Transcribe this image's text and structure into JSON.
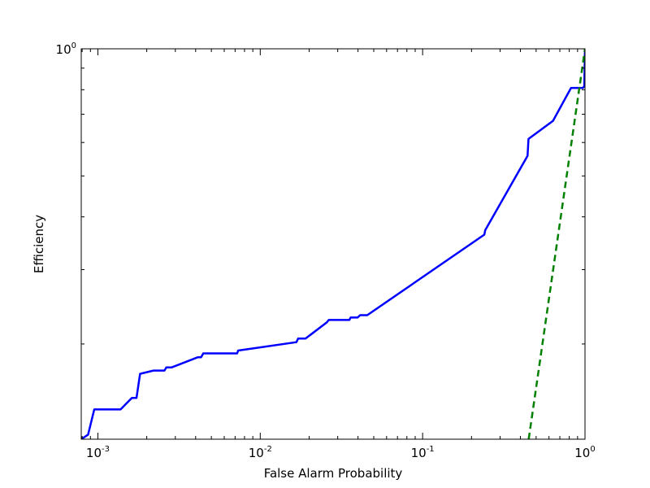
{
  "chart_data": {
    "type": "line",
    "title": "",
    "xlabel": "False Alarm Probability",
    "ylabel": "Efficiency",
    "xscale": "log",
    "yscale": "log",
    "xlim": [
      0.00079,
      1.0
    ],
    "ylim": [
      0.119,
      1.0
    ],
    "grid": false,
    "legend": "none",
    "x_tick_labels": [
      {
        "value": 0.001,
        "base": "10",
        "exp": "-3"
      },
      {
        "value": 0.01,
        "base": "10",
        "exp": "-2"
      },
      {
        "value": 0.1,
        "base": "10",
        "exp": "-1"
      },
      {
        "value": 1,
        "base": "10",
        "exp": "0"
      }
    ],
    "y_tick_labels": [
      {
        "value": 1,
        "base": "10",
        "exp": "0"
      }
    ],
    "series": [
      {
        "color": "#0000ff",
        "style": "solid",
        "points": [
          [
            0.00079,
            0.119
          ],
          [
            0.00087,
            0.122
          ],
          [
            0.00095,
            0.14
          ],
          [
            0.00138,
            0.14
          ],
          [
            0.00162,
            0.149
          ],
          [
            0.00173,
            0.149
          ],
          [
            0.00182,
            0.17
          ],
          [
            0.0022,
            0.173
          ],
          [
            0.00257,
            0.173
          ],
          [
            0.00264,
            0.176
          ],
          [
            0.00285,
            0.176
          ],
          [
            0.00412,
            0.186
          ],
          [
            0.00432,
            0.186
          ],
          [
            0.00446,
            0.19
          ],
          [
            0.00721,
            0.19
          ],
          [
            0.00731,
            0.193
          ],
          [
            0.0167,
            0.202
          ],
          [
            0.0171,
            0.206
          ],
          [
            0.019,
            0.206
          ],
          [
            0.0257,
            0.225
          ],
          [
            0.0264,
            0.228
          ],
          [
            0.0354,
            0.228
          ],
          [
            0.036,
            0.231
          ],
          [
            0.0398,
            0.231
          ],
          [
            0.0412,
            0.234
          ],
          [
            0.0456,
            0.234
          ],
          [
            0.24,
            0.363
          ],
          [
            0.243,
            0.372
          ],
          [
            0.443,
            0.558
          ],
          [
            0.447,
            0.595
          ],
          [
            0.449,
            0.612
          ],
          [
            0.635,
            0.675
          ],
          [
            0.82,
            0.808
          ],
          [
            0.97,
            0.808
          ],
          [
            0.99,
            0.816
          ],
          [
            1.0,
            1.0
          ]
        ]
      },
      {
        "color": "#008000",
        "style": "dashed",
        "points": [
          [
            0.45,
            0.119
          ],
          [
            1.0,
            1.0
          ]
        ]
      }
    ]
  }
}
